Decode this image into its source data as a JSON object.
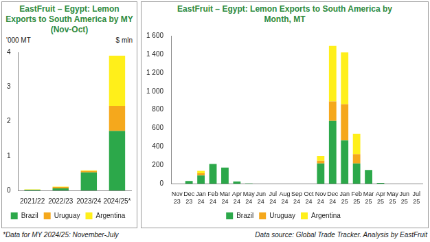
{
  "chart_data": [
    {
      "type": "bar",
      "title": "EastFruit – Egypt: Lemon Exports to South America by MY (Nov-Oct)",
      "ylabel": "'000 MT",
      "ylabel_right": "$ mln",
      "categories": [
        "2021/22",
        "2022/23",
        "2023/24",
        "2024/25*"
      ],
      "series": [
        {
          "name": "Brazil",
          "color": "#2ca84a",
          "values": [
            0.02,
            0.06,
            0.52,
            1.72
          ]
        },
        {
          "name": "Uruguay",
          "color": "#f5a81c",
          "values": [
            0.0,
            0.04,
            0.04,
            0.73
          ]
        },
        {
          "name": "Argentina",
          "color": "#ffef1a",
          "values": [
            0.01,
            0.01,
            0.02,
            1.45
          ]
        }
      ],
      "stacked": true,
      "ylim": [
        0,
        4
      ],
      "yticks": [
        0,
        1,
        2,
        3,
        4
      ],
      "grid": false,
      "legend": "bottom"
    },
    {
      "type": "bar",
      "title": "EastFruit – Egypt: Lemon Exports to South America by Month, MT",
      "categories": [
        "Nov 23",
        "Dec 23",
        "Jan 24",
        "Feb 24",
        "Mar 24",
        "Apr 24",
        "May 24",
        "Jun 24",
        "Jul 24",
        "Aug 24",
        "Sep 24",
        "Oct 24",
        "Nov 24",
        "Dec 24",
        "Jan 25",
        "Feb 25",
        "Mar 25",
        "Apr 25",
        "May 25",
        "Jun 25",
        "Jul 25"
      ],
      "series": [
        {
          "name": "Brazil",
          "color": "#2ca84a",
          "values": [
            0,
            30,
            90,
            215,
            175,
            25,
            5,
            0,
            0,
            0,
            0,
            0,
            220,
            680,
            470,
            220,
            150,
            10,
            0,
            0,
            0
          ]
        },
        {
          "name": "Uruguay",
          "color": "#f5a81c",
          "values": [
            0,
            0,
            25,
            0,
            0,
            0,
            0,
            0,
            0,
            0,
            0,
            0,
            30,
            210,
            390,
            100,
            0,
            0,
            0,
            0,
            0
          ]
        },
        {
          "name": "Argentina",
          "color": "#ffef1a",
          "values": [
            0,
            0,
            25,
            0,
            0,
            0,
            0,
            0,
            0,
            0,
            0,
            0,
            50,
            600,
            560,
            220,
            0,
            0,
            0,
            0,
            0
          ]
        }
      ],
      "stacked": true,
      "ylim": [
        0,
        1600
      ],
      "yticks": [
        0,
        200,
        400,
        600,
        800,
        {
          "value": 1000,
          "label": "1 000"
        },
        {
          "value": 1200,
          "label": "1 200"
        },
        {
          "value": 1400,
          "label": "1 400"
        },
        {
          "value": 1600,
          "label": "1 600"
        }
      ],
      "grid": false,
      "legend": "bottom"
    }
  ],
  "footnote": "*Data for MY 2024/25: November-July",
  "source": "Data source: Global Trade Tracker. Analysis by EastFruit"
}
